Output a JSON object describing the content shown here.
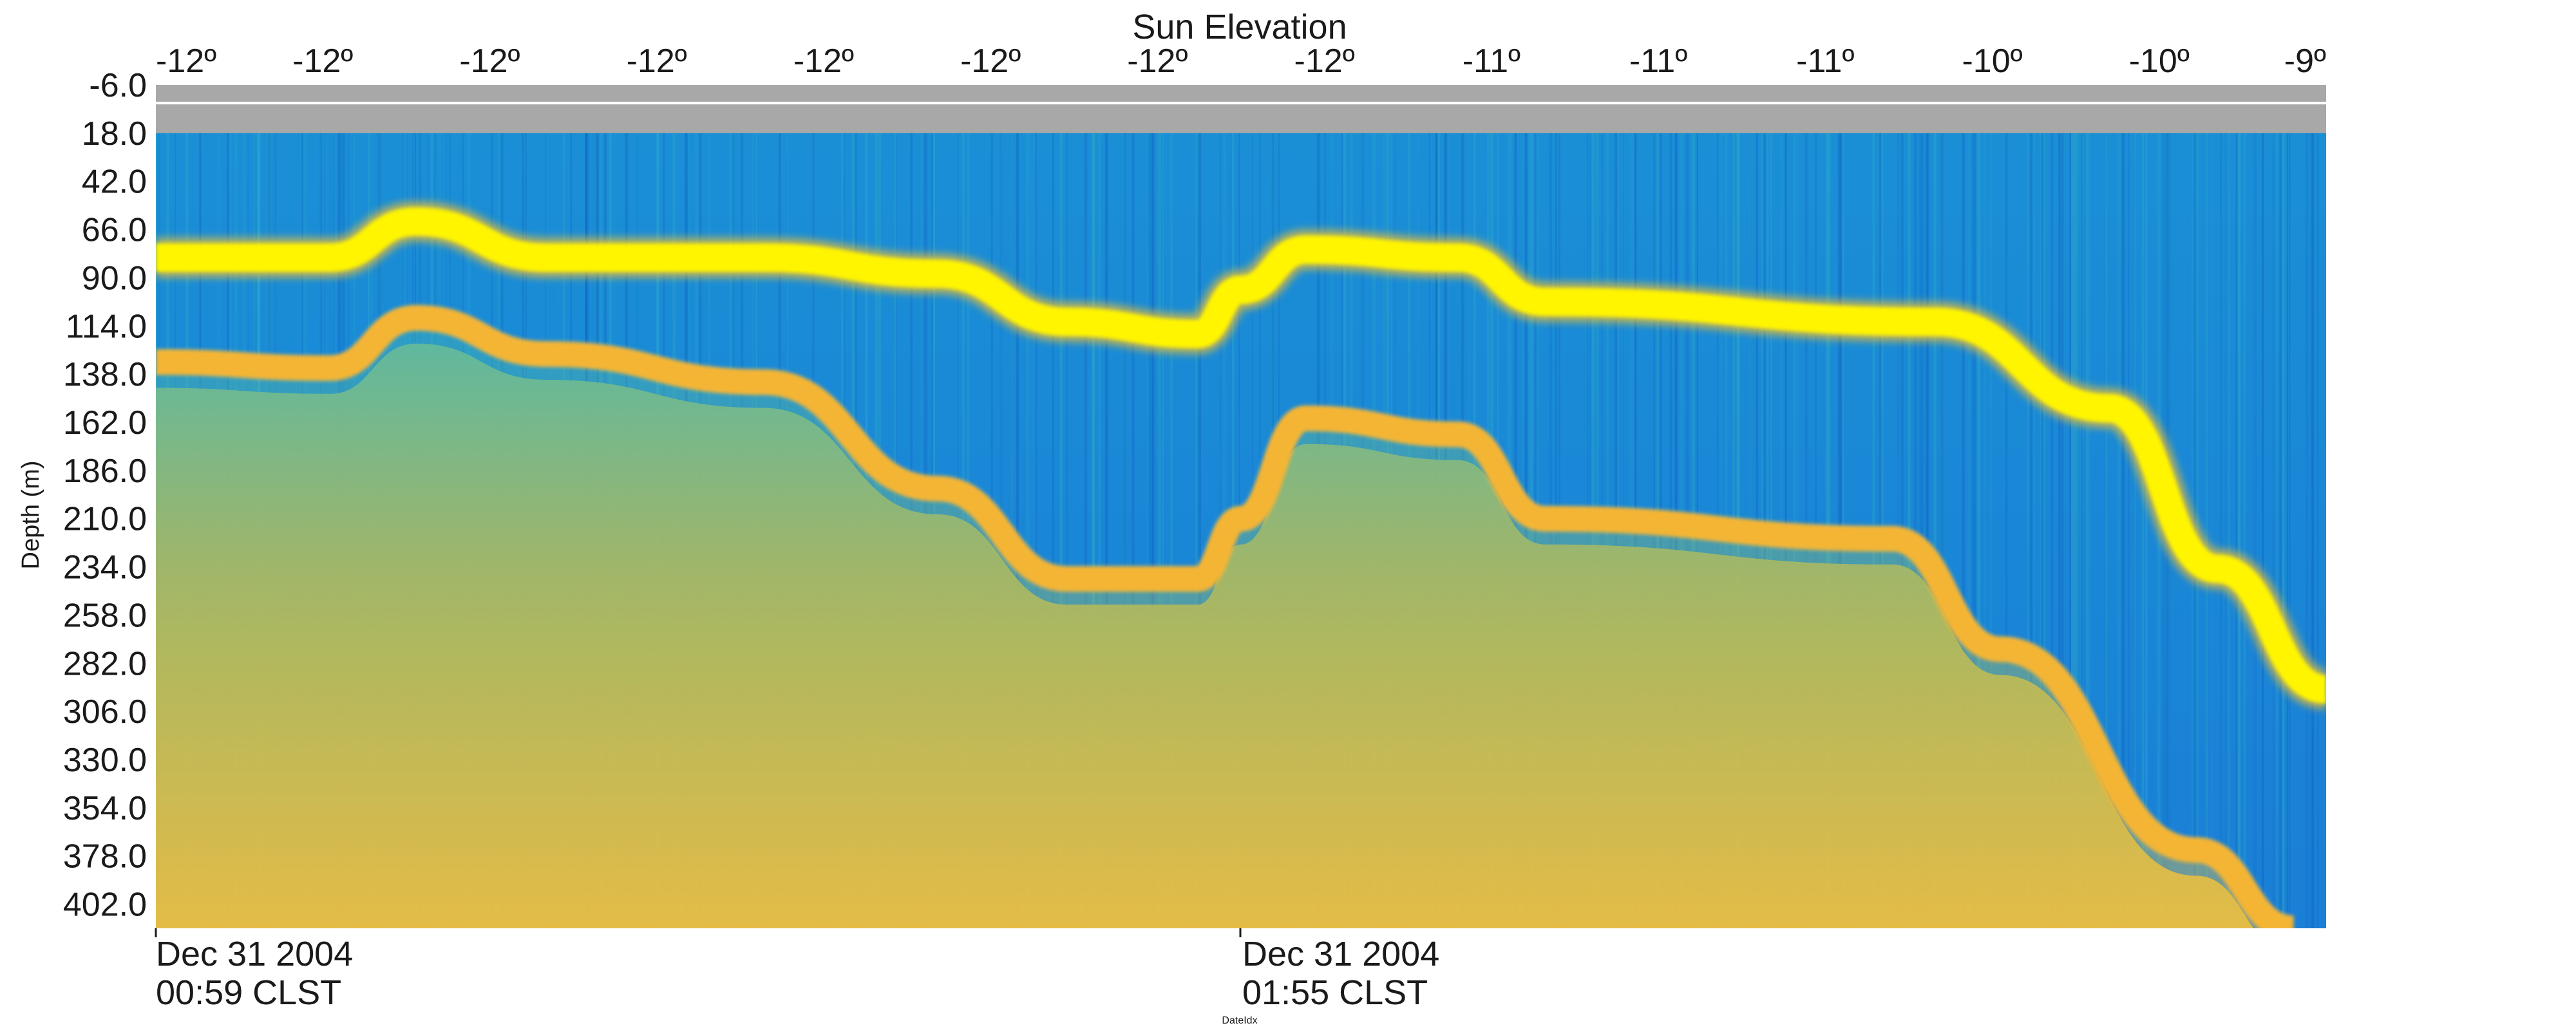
{
  "chart_data": {
    "type": "heatmap",
    "title": "Sun Elevation",
    "ylabel": "Depth (m)",
    "xlabel": "DateIdx",
    "top_axis_ticks": [
      "-12º",
      "-12º",
      "-12º",
      "-12º",
      "-12º",
      "-12º",
      "-12º",
      "-12º",
      "-11º",
      "-11º",
      "-11º",
      "-10º",
      "-10º",
      "-9º"
    ],
    "y_ticks": [
      "-6.0",
      "18.0",
      "42.0",
      "66.0",
      "90.0",
      "114.0",
      "138.0",
      "162.0",
      "186.0",
      "210.0",
      "234.0",
      "258.0",
      "282.0",
      "306.0",
      "330.0",
      "354.0",
      "378.0",
      "402.0"
    ],
    "ylim": [
      -6.0,
      414.0
    ],
    "surface_band_depth_max": 18.0,
    "bottom_time_labels": [
      {
        "date": "Dec 31 2004",
        "time": "00:59 CLST"
      },
      {
        "date": "Dec 31 2004",
        "time": "01:55 CLST"
      }
    ],
    "layers": [
      {
        "name": "upper-scattering-layer",
        "x": [
          0,
          0.08,
          0.12,
          0.18,
          0.28,
          0.36,
          0.42,
          0.48,
          0.5,
          0.53,
          0.6,
          0.64,
          0.82,
          0.9,
          0.95,
          1.0
        ],
        "depth": [
          80,
          80,
          62,
          80,
          80,
          88,
          112,
          118,
          96,
          76,
          80,
          102,
          112,
          155,
          235,
          295
        ]
      },
      {
        "name": "lower-scattering-layer",
        "x": [
          0,
          0.08,
          0.12,
          0.18,
          0.28,
          0.36,
          0.42,
          0.48,
          0.5,
          0.53,
          0.6,
          0.64,
          0.8,
          0.85,
          0.94,
          0.985
        ],
        "depth": [
          132,
          135,
          110,
          128,
          142,
          195,
          240,
          240,
          210,
          160,
          168,
          210,
          220,
          275,
          375,
          414
        ]
      }
    ],
    "colors": {
      "low": "#0b5fd4",
      "mid": "#1fb0c4",
      "high": "#f5b52e",
      "peak": "#fff700",
      "surface": "#a8a8a8"
    }
  }
}
